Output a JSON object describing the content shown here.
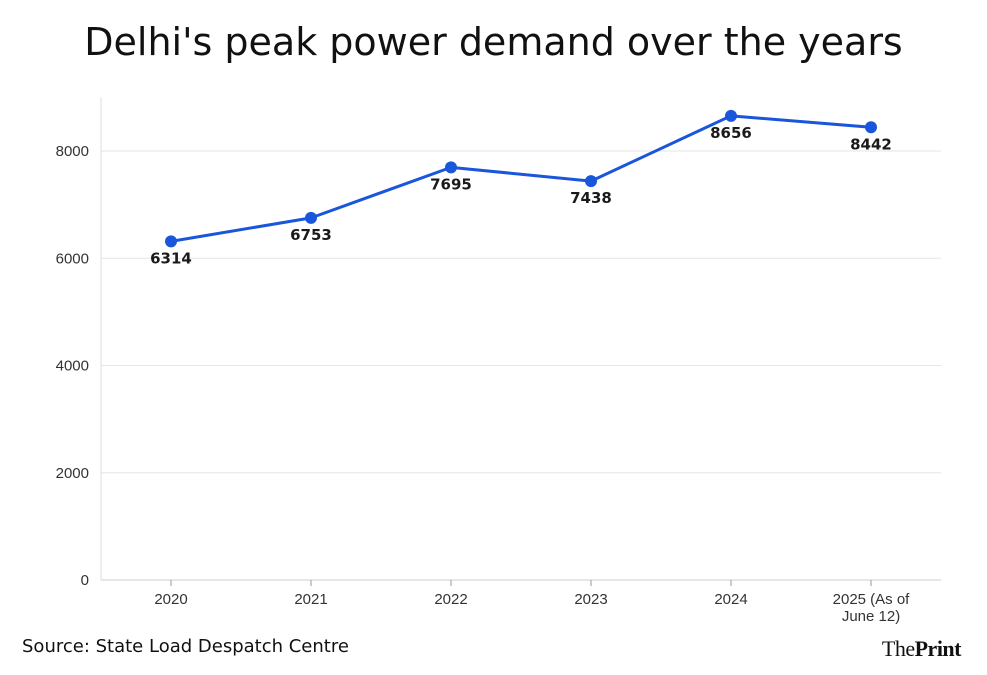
{
  "chart_data": {
    "type": "line",
    "title": "Delhi's peak power demand over the years",
    "categories": [
      "2020",
      "2021",
      "2022",
      "2023",
      "2024",
      "2025 (As of June 12)"
    ],
    "category_label_lines": [
      [
        "2020"
      ],
      [
        "2021"
      ],
      [
        "2022"
      ],
      [
        "2023"
      ],
      [
        "2024"
      ],
      [
        "2025 (As of",
        "June 12)"
      ]
    ],
    "values": [
      6314,
      6753,
      7695,
      7438,
      8656,
      8442
    ],
    "data_labels": [
      "6314",
      "6753",
      "7695",
      "7438",
      "8656",
      "8442"
    ],
    "ylim": [
      0,
      9000
    ],
    "yticks": [
      0,
      2000,
      4000,
      6000,
      8000
    ],
    "ytick_labels": [
      "0",
      "2000",
      "4000",
      "6000",
      "8000"
    ],
    "grid": true,
    "line_color": "#1a56db",
    "marker_color": "#1a56db"
  },
  "footer": {
    "source": "Source: State Load Despatch Centre",
    "logo_the": "The",
    "logo_print": "Print"
  }
}
